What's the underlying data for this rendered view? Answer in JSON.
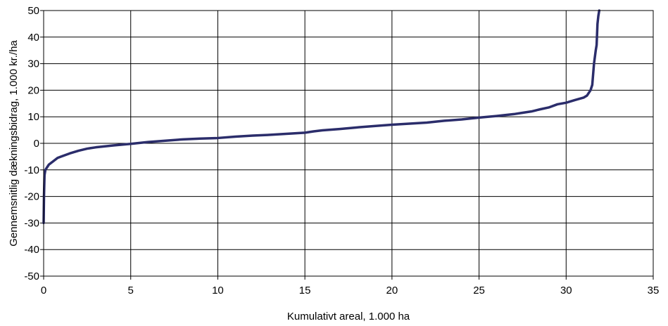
{
  "chart_data": {
    "type": "line",
    "title": "",
    "xlabel": "Kumulativt areal, 1.000 ha",
    "ylabel": "Gennemsnitlig dækningsbidrag, 1.000 kr./ha",
    "xlim": [
      0,
      35
    ],
    "ylim": [
      -50,
      50
    ],
    "x_ticks": [
      0,
      5,
      10,
      15,
      20,
      25,
      30,
      35
    ],
    "y_ticks": [
      -50,
      -40,
      -30,
      -20,
      -10,
      0,
      10,
      20,
      30,
      40,
      50
    ],
    "grid": true,
    "legend": "none",
    "series": [
      {
        "color": "#2b2d6b",
        "x": [
          0.0,
          0.02,
          0.05,
          0.1,
          0.2,
          0.3,
          0.5,
          0.8,
          1.0,
          1.5,
          2.0,
          2.5,
          3.0,
          4.0,
          5.0,
          6.0,
          7.0,
          8.0,
          9.0,
          10.0,
          11.0,
          12.0,
          13.0,
          14.0,
          15.0,
          15.5,
          16.0,
          17.0,
          18.0,
          19.0,
          20.0,
          21.0,
          22.0,
          23.0,
          24.0,
          25.0,
          26.0,
          27.0,
          27.5,
          28.0,
          28.5,
          29.0,
          29.5,
          30.0,
          30.5,
          31.0,
          31.2,
          31.4,
          31.5,
          31.6,
          31.7,
          31.75,
          31.8,
          31.85,
          31.9
        ],
        "y": [
          -30,
          -20,
          -12,
          -10,
          -9,
          -8,
          -7,
          -5.5,
          -5,
          -3.8,
          -2.8,
          -2,
          -1.5,
          -0.8,
          -0.2,
          0.5,
          1.0,
          1.5,
          1.8,
          2.0,
          2.5,
          2.9,
          3.2,
          3.6,
          4.0,
          4.5,
          4.9,
          5.4,
          6.0,
          6.5,
          7.0,
          7.4,
          7.8,
          8.5,
          9.0,
          9.7,
          10.3,
          11.0,
          11.5,
          12.0,
          12.8,
          13.5,
          14.7,
          15.3,
          16.3,
          17.2,
          18.0,
          20.0,
          22.0,
          30.0,
          35.0,
          37.0,
          45.0,
          48.0,
          52.0
        ]
      }
    ]
  }
}
